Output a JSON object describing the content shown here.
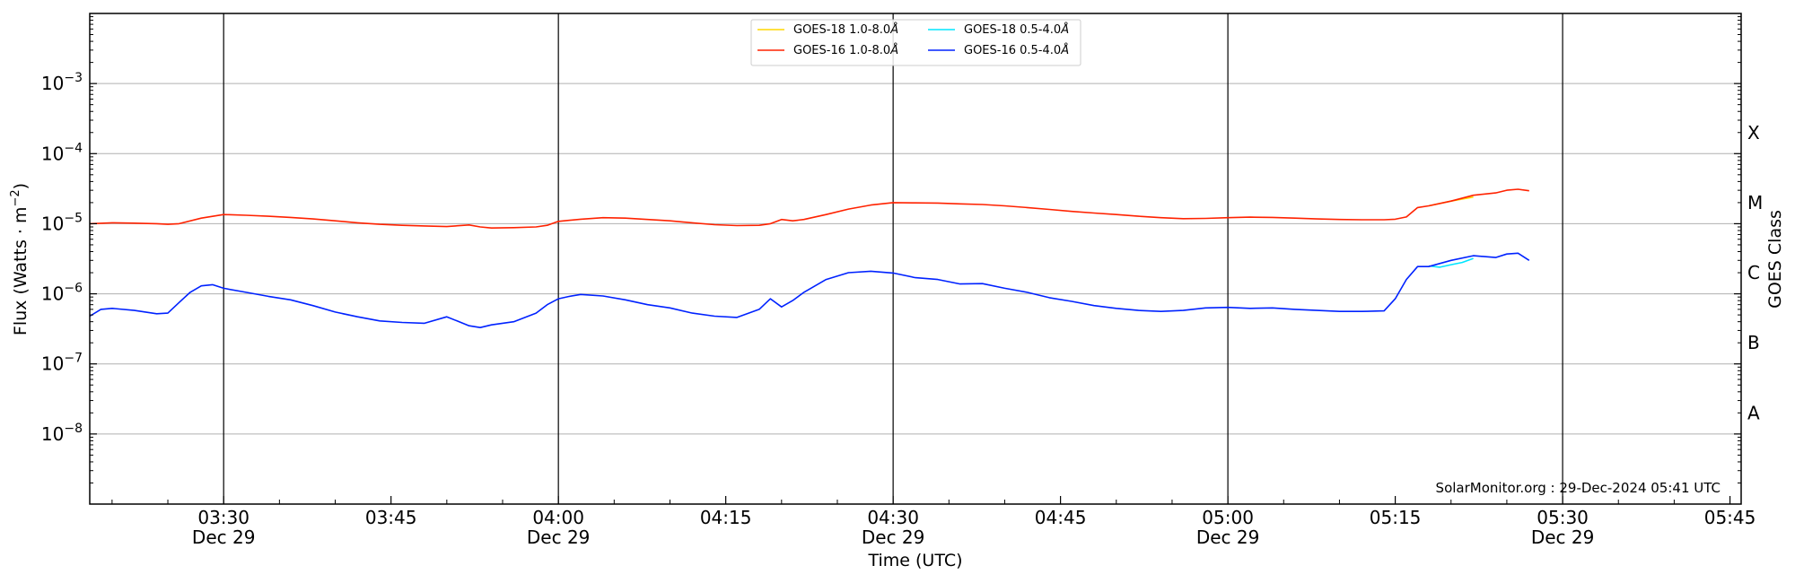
{
  "chart_data": {
    "type": "line",
    "ylabel": "Flux (Watts · m",
    "ylabel_sup": "−2",
    "ylabel_close": ")",
    "xlabel": "Time (UTC)",
    "y2label": "GOES Class",
    "y_scale": "log",
    "ylim": [
      1e-09,
      0.01
    ],
    "xlim": [
      "03:18",
      "05:46"
    ],
    "grid": "horizontal at decades",
    "legend_position": "top-center",
    "watermark": "SolarMonitor.org : 29-Dec-2024 05:41 UTC",
    "y_ticks": [
      {
        "value": 1e-08,
        "base": "10",
        "exp": "−8"
      },
      {
        "value": 1e-07,
        "base": "10",
        "exp": "−7"
      },
      {
        "value": 1e-06,
        "base": "10",
        "exp": "−6"
      },
      {
        "value": 1e-05,
        "base": "10",
        "exp": "−5"
      },
      {
        "value": 0.0001,
        "base": "10",
        "exp": "−4"
      },
      {
        "value": 0.001,
        "base": "10",
        "exp": "−3"
      }
    ],
    "x_ticks": [
      {
        "time": "03:30",
        "label": "03:30",
        "date": "Dec 29",
        "vline": true
      },
      {
        "time": "03:45",
        "label": "03:45",
        "date": "",
        "vline": false
      },
      {
        "time": "04:00",
        "label": "04:00",
        "date": "Dec 29",
        "vline": true
      },
      {
        "time": "04:15",
        "label": "04:15",
        "date": "",
        "vline": false
      },
      {
        "time": "04:30",
        "label": "04:30",
        "date": "Dec 29",
        "vline": true
      },
      {
        "time": "04:45",
        "label": "04:45",
        "date": "",
        "vline": false
      },
      {
        "time": "05:00",
        "label": "05:00",
        "date": "Dec 29",
        "vline": true
      },
      {
        "time": "05:15",
        "label": "05:15",
        "date": "",
        "vline": false
      },
      {
        "time": "05:30",
        "label": "05:30",
        "date": "Dec 29",
        "vline": true
      },
      {
        "time": "05:45",
        "label": "05:45",
        "date": "",
        "vline": false
      }
    ],
    "goes_classes": [
      {
        "label": "X",
        "value": 0.0002
      },
      {
        "label": "M",
        "value": 2e-05
      },
      {
        "label": "C",
        "value": 2e-06
      },
      {
        "label": "B",
        "value": 2e-07
      },
      {
        "label": "A",
        "value": 2e-08
      }
    ],
    "legend": [
      {
        "label": "GOES-18 1.0-8.0",
        "color": "#ffd700"
      },
      {
        "label": "GOES-18 0.5-4.0",
        "color": "#00e5ff"
      },
      {
        "label": "GOES-16 1.0-8.0",
        "color": "#ff2200"
      },
      {
        "label": "GOES-16 0.5-4.0",
        "color": "#0022ff"
      }
    ],
    "legend_unit": "Å",
    "series": [
      {
        "name": "GOES-18 1.0-8.0Å",
        "color": "#ffd700",
        "x": [
          "05:18",
          "05:20",
          "05:22"
        ],
        "y": [
          1.8e-05,
          2.1e-05,
          2.4e-05
        ]
      },
      {
        "name": "GOES-18 0.5-4.0Å",
        "color": "#00e5ff",
        "x": [
          "05:18",
          "05:19",
          "05:20",
          "05:21",
          "05:22"
        ],
        "y": [
          2.5e-06,
          2.4e-06,
          2.6e-06,
          2.8e-06,
          3.2e-06
        ]
      },
      {
        "name": "GOES-16 1.0-8.0Å",
        "color": "#ff2200",
        "x": [
          "03:18",
          "03:20",
          "03:22",
          "03:24",
          "03:25",
          "03:26",
          "03:28",
          "03:30",
          "03:32",
          "03:34",
          "03:36",
          "03:38",
          "03:40",
          "03:42",
          "03:44",
          "03:46",
          "03:48",
          "03:50",
          "03:52",
          "03:53",
          "03:54",
          "03:56",
          "03:58",
          "03:59",
          "04:00",
          "04:02",
          "04:04",
          "04:06",
          "04:08",
          "04:10",
          "04:12",
          "04:14",
          "04:16",
          "04:18",
          "04:19",
          "04:20",
          "04:21",
          "04:22",
          "04:24",
          "04:26",
          "04:28",
          "04:30",
          "04:32",
          "04:34",
          "04:36",
          "04:38",
          "04:40",
          "04:42",
          "04:44",
          "04:46",
          "04:48",
          "04:50",
          "04:52",
          "04:54",
          "04:56",
          "04:58",
          "05:00",
          "05:02",
          "05:04",
          "05:06",
          "05:08",
          "05:10",
          "05:12",
          "05:14",
          "05:15",
          "05:16",
          "05:17",
          "05:18",
          "05:20",
          "05:22",
          "05:24",
          "05:25",
          "05:26",
          "05:27"
        ],
        "y": [
          1e-05,
          1.03e-05,
          1.02e-05,
          1e-05,
          9.8e-06,
          1e-05,
          1.2e-05,
          1.35e-05,
          1.32e-05,
          1.28e-05,
          1.23e-05,
          1.17e-05,
          1.1e-05,
          1.03e-05,
          9.8e-06,
          9.5e-06,
          9.3e-06,
          9.1e-06,
          9.6e-06,
          9e-06,
          8.7e-06,
          8.8e-06,
          9e-06,
          9.5e-06,
          1.08e-05,
          1.16e-05,
          1.22e-05,
          1.2e-05,
          1.15e-05,
          1.1e-05,
          1.03e-05,
          9.7e-06,
          9.4e-06,
          9.5e-06,
          1e-05,
          1.15e-05,
          1.1e-05,
          1.15e-05,
          1.35e-05,
          1.62e-05,
          1.85e-05,
          2e-05,
          1.98e-05,
          1.97e-05,
          1.92e-05,
          1.88e-05,
          1.8e-05,
          1.7e-05,
          1.6e-05,
          1.5e-05,
          1.42e-05,
          1.35e-05,
          1.28e-05,
          1.22e-05,
          1.18e-05,
          1.19e-05,
          1.22e-05,
          1.24e-05,
          1.23e-05,
          1.2e-05,
          1.17e-05,
          1.15e-05,
          1.14e-05,
          1.14e-05,
          1.16e-05,
          1.25e-05,
          1.7e-05,
          1.8e-05,
          2.1e-05,
          2.55e-05,
          2.75e-05,
          3e-05,
          3.1e-05,
          2.95e-05
        ]
      },
      {
        "name": "GOES-16 0.5-4.0Å",
        "color": "#0022ff",
        "x": [
          "03:18",
          "03:19",
          "03:20",
          "03:22",
          "03:24",
          "03:25",
          "03:26",
          "03:27",
          "03:28",
          "03:29",
          "03:30",
          "03:32",
          "03:34",
          "03:36",
          "03:38",
          "03:40",
          "03:42",
          "03:44",
          "03:46",
          "03:48",
          "03:50",
          "03:52",
          "03:53",
          "03:54",
          "03:55",
          "03:56",
          "03:58",
          "03:59",
          "04:00",
          "04:01",
          "04:02",
          "04:04",
          "04:06",
          "04:08",
          "04:10",
          "04:12",
          "04:14",
          "04:16",
          "04:18",
          "04:19",
          "04:20",
          "04:21",
          "04:22",
          "04:24",
          "04:26",
          "04:28",
          "04:30",
          "04:32",
          "04:34",
          "04:36",
          "04:38",
          "04:40",
          "04:42",
          "04:44",
          "04:46",
          "04:48",
          "04:50",
          "04:52",
          "04:54",
          "04:56",
          "04:58",
          "05:00",
          "05:02",
          "05:04",
          "05:06",
          "05:08",
          "05:10",
          "05:12",
          "05:14",
          "05:15",
          "05:16",
          "05:17",
          "05:18",
          "05:20",
          "05:22",
          "05:24",
          "05:25",
          "05:26",
          "05:27"
        ],
        "y": [
          4.8e-07,
          6e-07,
          6.2e-07,
          5.8e-07,
          5.2e-07,
          5.3e-07,
          7.5e-07,
          1.05e-06,
          1.3e-06,
          1.35e-06,
          1.2e-06,
          1.05e-06,
          9.2e-07,
          8.2e-07,
          6.8e-07,
          5.5e-07,
          4.7e-07,
          4.1e-07,
          3.9e-07,
          3.8e-07,
          4.7e-07,
          3.5e-07,
          3.3e-07,
          3.6e-07,
          3.8e-07,
          4e-07,
          5.3e-07,
          7e-07,
          8.5e-07,
          9.2e-07,
          9.8e-07,
          9.3e-07,
          8.2e-07,
          7e-07,
          6.3e-07,
          5.3e-07,
          4.8e-07,
          4.6e-07,
          6e-07,
          8.5e-07,
          6.5e-07,
          8e-07,
          1.05e-06,
          1.6e-06,
          2e-06,
          2.1e-06,
          1.98e-06,
          1.7e-06,
          1.6e-06,
          1.38e-06,
          1.4e-06,
          1.2e-06,
          1.05e-06,
          8.8e-07,
          7.8e-07,
          6.8e-07,
          6.2e-07,
          5.8e-07,
          5.6e-07,
          5.8e-07,
          6.3e-07,
          6.4e-07,
          6.2e-07,
          6.3e-07,
          6e-07,
          5.8e-07,
          5.6e-07,
          5.6e-07,
          5.7e-07,
          8.5e-07,
          1.6e-06,
          2.45e-06,
          2.45e-06,
          3e-06,
          3.5e-06,
          3.3e-06,
          3.7e-06,
          3.8e-06,
          3e-06
        ]
      }
    ]
  }
}
